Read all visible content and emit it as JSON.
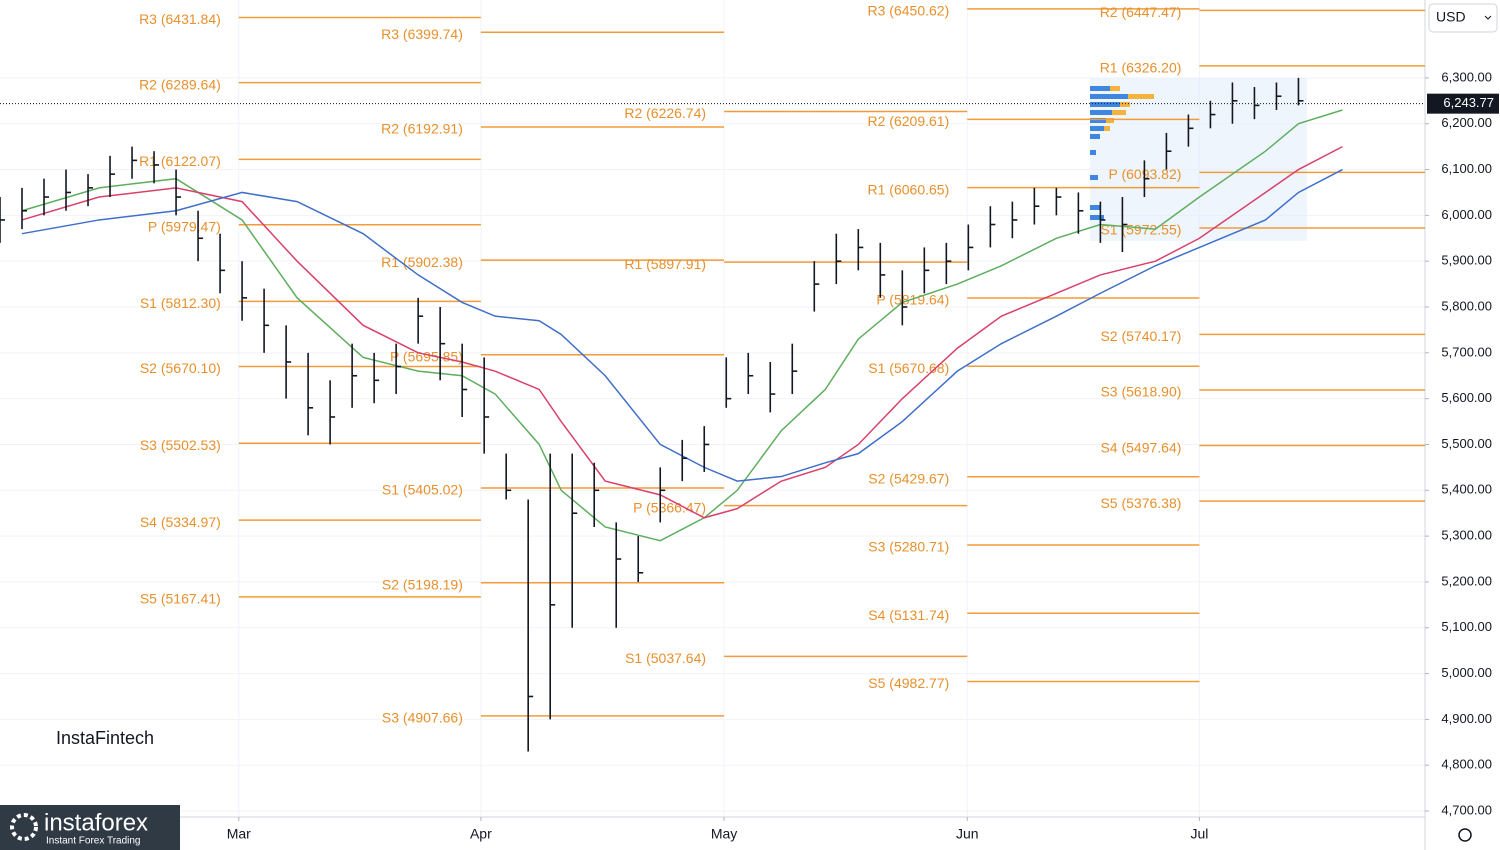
{
  "chart_data": {
    "type": "ohlc",
    "currency": "USD",
    "watermark": "InstaFintech",
    "brand": {
      "name": "instaforex",
      "tagline": "Instant Forex Trading"
    },
    "xlim": [
      0,
      129.5
    ],
    "xticks": [
      {
        "value": 21.7,
        "label": "Mar"
      },
      {
        "value": 43.7,
        "label": "Apr"
      },
      {
        "value": 65.8,
        "label": "May"
      },
      {
        "value": 87.9,
        "label": "Jun"
      },
      {
        "value": 109,
        "label": "Jul"
      }
    ],
    "ylim": [
      4687,
      6470
    ],
    "yticks": [
      {
        "value": 4700,
        "label": "4,700.00"
      },
      {
        "value": 4800,
        "label": "4,800.00"
      },
      {
        "value": 4900,
        "label": "4,900.00"
      },
      {
        "value": 5000,
        "label": "5,000.00"
      },
      {
        "value": 5100,
        "label": "5,100.00"
      },
      {
        "value": 5200,
        "label": "5,200.00"
      },
      {
        "value": 5300,
        "label": "5,300.00"
      },
      {
        "value": 5400,
        "label": "5,400.00"
      },
      {
        "value": 5500,
        "label": "5,500.00"
      },
      {
        "value": 5600,
        "label": "5,600.00"
      },
      {
        "value": 5700,
        "label": "5,700.00"
      },
      {
        "value": 5800,
        "label": "5,800.00"
      },
      {
        "value": 5900,
        "label": "5,900.00"
      },
      {
        "value": 6000,
        "label": "6,000.00"
      },
      {
        "value": 6100,
        "label": "6,100.00"
      },
      {
        "value": 6200,
        "label": "6,200.00"
      },
      {
        "value": 6300,
        "label": "6,300.00"
      }
    ],
    "grid": true,
    "last_price": {
      "value": 6243.77,
      "label": "6,243.77"
    },
    "bars": {
      "color": "#131722",
      "x": [
        0,
        2,
        4,
        6,
        8,
        10,
        12,
        14,
        16,
        18,
        20,
        22,
        24,
        26,
        28,
        30,
        32,
        34,
        36,
        38,
        40,
        42,
        44,
        46,
        48,
        50,
        52,
        54,
        56,
        58,
        60,
        62,
        64,
        66,
        68,
        70,
        72,
        74,
        76,
        78,
        80,
        82,
        84,
        86,
        88,
        90,
        92,
        94,
        96,
        98,
        100,
        102,
        104,
        106,
        108,
        110,
        112,
        114,
        116,
        118
      ],
      "high": [
        6040,
        6060,
        6080,
        6100,
        6090,
        6130,
        6150,
        6140,
        6100,
        6010,
        5960,
        5900,
        5840,
        5760,
        5700,
        5640,
        5720,
        5700,
        5720,
        5820,
        5800,
        5720,
        5690,
        5480,
        5380,
        5480,
        5480,
        5460,
        5330,
        5300,
        5450,
        5510,
        5540,
        5690,
        5700,
        5680,
        5720,
        5900,
        5960,
        5970,
        5940,
        5880,
        5930,
        5940,
        5980,
        6020,
        6030,
        6060,
        6060,
        6050,
        6030,
        6040,
        6120,
        6180,
        6220,
        6250,
        6290,
        6280,
        6290,
        6300
      ],
      "low": [
        5940,
        5970,
        6000,
        6010,
        6020,
        6040,
        6080,
        6070,
        6000,
        5900,
        5830,
        5770,
        5700,
        5600,
        5520,
        5500,
        5580,
        5590,
        5610,
        5720,
        5640,
        5560,
        5480,
        5380,
        4830,
        4900,
        5100,
        5320,
        5100,
        5200,
        5330,
        5420,
        5440,
        5580,
        5610,
        5570,
        5610,
        5790,
        5850,
        5880,
        5820,
        5760,
        5830,
        5850,
        5880,
        5930,
        5950,
        5980,
        6000,
        5960,
        5940,
        5920,
        6040,
        6100,
        6150,
        6190,
        6200,
        6210,
        6230,
        6240
      ],
      "close": [
        5990,
        6010,
        6040,
        6050,
        6060,
        6090,
        6120,
        6110,
        6040,
        5950,
        5880,
        5820,
        5760,
        5680,
        5580,
        5560,
        5650,
        5640,
        5670,
        5780,
        5720,
        5620,
        5560,
        5400,
        4950,
        5150,
        5350,
        5400,
        5250,
        5220,
        5400,
        5470,
        5500,
        5600,
        5650,
        5610,
        5660,
        5850,
        5900,
        5930,
        5870,
        5800,
        5880,
        5900,
        5930,
        5980,
        5990,
        6020,
        6040,
        6010,
        5990,
        5980,
        6080,
        6140,
        6190,
        6220,
        6250,
        6240,
        6260,
        6250
      ]
    },
    "moving_averages": {
      "x": [
        2,
        9,
        16,
        22,
        27,
        33,
        38,
        42,
        45,
        49,
        51,
        55,
        60,
        64,
        67,
        71,
        75,
        78,
        82,
        87,
        91,
        96,
        100,
        105,
        109,
        115,
        118,
        122
      ],
      "series": [
        {
          "color": "#5fae5f",
          "values": [
            6010,
            6060,
            6080,
            5990,
            5820,
            5690,
            5660,
            5650,
            5610,
            5500,
            5400,
            5320,
            5290,
            5340,
            5400,
            5530,
            5620,
            5730,
            5810,
            5850,
            5890,
            5950,
            5980,
            5970,
            6040,
            6140,
            6200,
            6230
          ]
        },
        {
          "color": "#d9416a",
          "values": [
            5990,
            6040,
            6060,
            6030,
            5900,
            5760,
            5700,
            5680,
            5660,
            5620,
            5550,
            5420,
            5390,
            5340,
            5360,
            5420,
            5450,
            5500,
            5600,
            5710,
            5780,
            5830,
            5870,
            5900,
            5950,
            6050,
            6100,
            6150
          ]
        },
        {
          "color": "#3f6fc9",
          "values": [
            5960,
            5990,
            6010,
            6050,
            6030,
            5960,
            5870,
            5810,
            5780,
            5770,
            5740,
            5650,
            5500,
            5450,
            5420,
            5430,
            5460,
            5480,
            5550,
            5660,
            5720,
            5780,
            5830,
            5890,
            5930,
            5990,
            6050,
            6100
          ]
        }
      ]
    },
    "pivot_color": "#f29b38",
    "pivots": [
      {
        "levels": [
          {
            "label": "R3 (6431.84)",
            "value": 6431.84
          },
          {
            "label": "R2 (6289.64)",
            "value": 6289.64
          },
          {
            "label": "R1 (6122.07)",
            "value": 6122.07
          },
          {
            "label": "P (5979.47)",
            "value": 5979.47
          },
          {
            "label": "S1 (5812.30)",
            "value": 5812.3
          },
          {
            "label": "S2 (5670.10)",
            "value": 5670.1
          },
          {
            "label": "S3 (5502.53)",
            "value": 5502.53
          },
          {
            "label": "S4 (5334.97)",
            "value": 5334.97
          },
          {
            "label": "S5 (5167.41)",
            "value": 5167.41
          }
        ]
      },
      {
        "levels": [
          {
            "label": "R3 (6399.74)",
            "value": 6399.74
          },
          {
            "label": "R2 (6192.91)",
            "value": 6192.91
          },
          {
            "label": "R1 (5902.38)",
            "value": 5902.38
          },
          {
            "label": "P (5695.85)",
            "value": 5695.85
          },
          {
            "label": "S1 (5405.02)",
            "value": 5405.02
          },
          {
            "label": "S2 (5198.19)",
            "value": 5198.19
          },
          {
            "label": "S3 (4907.66)",
            "value": 4907.66
          }
        ]
      },
      {
        "levels": [
          {
            "label": "R2 (6226.74)",
            "value": 6226.74
          },
          {
            "label": "R1 (5897.91)",
            "value": 5897.91
          },
          {
            "label": "P (5366.47)",
            "value": 5366.47
          },
          {
            "label": "S1 (5037.64)",
            "value": 5037.64
          }
        ]
      },
      {
        "levels": [
          {
            "label": "R3 (6450.62)",
            "value": 6450.62
          },
          {
            "label": "R2 (6209.61)",
            "value": 6209.61
          },
          {
            "label": "R1 (6060.65)",
            "value": 6060.65
          },
          {
            "label": "P (5819.64)",
            "value": 5819.64
          },
          {
            "label": "S1 (5670.68)",
            "value": 5670.68
          },
          {
            "label": "S2 (5429.67)",
            "value": 5429.67
          },
          {
            "label": "S3 (5280.71)",
            "value": 5280.71
          },
          {
            "label": "S4 (5131.74)",
            "value": 5131.74
          },
          {
            "label": "S5 (4982.77)",
            "value": 4982.77
          }
        ]
      },
      {
        "levels": [
          {
            "label": "R2 (6447.47)",
            "value": 6447.47
          },
          {
            "label": "R1 (6326.20)",
            "value": 6326.2
          },
          {
            "label": "P (6093.82)",
            "value": 6093.82
          },
          {
            "label": "S1 (5972.55)",
            "value": 5972.55
          },
          {
            "label": "S2 (5740.17)",
            "value": 5740.17
          },
          {
            "label": "S3 (5618.90)",
            "value": 5618.9
          },
          {
            "label": "S4 (5497.64)",
            "value": 5497.64
          },
          {
            "label": "S5 (5376.38)",
            "value": 5376.38
          }
        ]
      }
    ]
  }
}
